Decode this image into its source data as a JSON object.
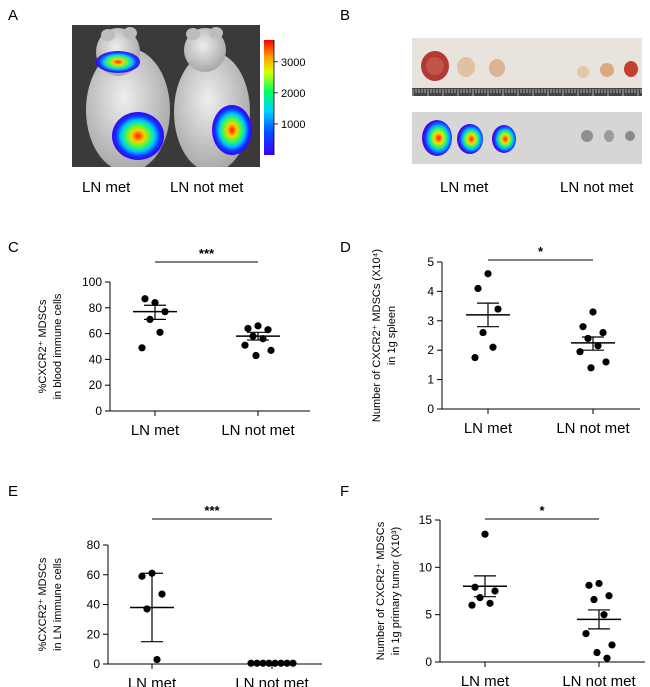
{
  "panel_letters": [
    "A",
    "B",
    "C",
    "D",
    "E",
    "F"
  ],
  "panel_a": {
    "labels": [
      "LN met",
      "LN not met"
    ],
    "colorbar_ticks": [
      "3000",
      "2000",
      "1000"
    ],
    "colorbar_values": [
      3000,
      2000,
      1000
    ],
    "colorbar_range": [
      0,
      3700
    ],
    "colors": {
      "background": "#3a3a3a",
      "mouse": "#cfcfcf"
    }
  },
  "panel_b": {
    "labels": [
      "LN met",
      "LN not met"
    ],
    "colors": {
      "tray": "#e9e3dd",
      "node_red": "#b33a32",
      "node_tan": "#e0c2a2"
    }
  },
  "chart_data": [
    {
      "id": "C",
      "type": "scatter",
      "ylabel_lines": [
        "%CXCR2⁺ MDSCs",
        "in blood immune cells"
      ],
      "categories": [
        "LN met",
        "LN not met"
      ],
      "ylim": [
        0,
        100
      ],
      "yticks": [
        0,
        20,
        40,
        60,
        80,
        100
      ],
      "series": [
        {
          "name": "LN met",
          "values": [
            84,
            87,
            77,
            71,
            61,
            49
          ],
          "center": 77,
          "error_bars": [
            71,
            82
          ]
        },
        {
          "name": "LN not met",
          "values": [
            66,
            64,
            63,
            58,
            56,
            51,
            47,
            43
          ],
          "center": 58,
          "error_bars": [
            55,
            61
          ]
        }
      ],
      "significance": "***"
    },
    {
      "id": "D",
      "type": "scatter",
      "ylabel_lines": [
        "Number of CXCR2⁺ MDSCs (X10⁴)",
        "in 1g spleen"
      ],
      "categories": [
        "LN met",
        "LN not met"
      ],
      "ylim": [
        0,
        5
      ],
      "yticks": [
        0,
        1,
        2,
        3,
        4,
        5
      ],
      "series": [
        {
          "name": "LN met",
          "values": [
            4.6,
            4.1,
            3.4,
            2.6,
            2.1,
            1.75
          ],
          "center": 3.2,
          "error_bars": [
            2.8,
            3.6
          ]
        },
        {
          "name": "LN not met",
          "values": [
            3.3,
            2.8,
            2.6,
            2.4,
            2.15,
            1.95,
            1.6,
            1.4
          ],
          "center": 2.25,
          "error_bars": [
            2.0,
            2.45
          ]
        }
      ],
      "significance": "*"
    },
    {
      "id": "E",
      "type": "scatter",
      "ylabel_lines": [
        "%CXCR2⁺ MDSCs",
        "in LN immune cells"
      ],
      "categories": [
        "LN met",
        "LN not met"
      ],
      "ylim": [
        0,
        80
      ],
      "yticks": [
        0,
        20,
        40,
        60,
        80
      ],
      "series": [
        {
          "name": "LN met",
          "values": [
            61,
            59,
            47,
            37,
            3
          ],
          "center": 38,
          "error_bars": [
            15,
            61
          ]
        },
        {
          "name": "LN not met",
          "values": [
            0.5,
            0.5,
            0.5,
            0.5,
            0.5,
            0.5,
            0.5,
            0.5
          ],
          "center": 0.5,
          "error_bars": [
            0.3,
            0.8
          ]
        }
      ],
      "significance": "***"
    },
    {
      "id": "F",
      "type": "scatter",
      "ylabel_lines": [
        "Number of CXCR2⁺ MDSCs",
        "in 1g primary tumor (X10³)"
      ],
      "categories": [
        "LN met",
        "LN not met"
      ],
      "ylim": [
        0,
        15
      ],
      "yticks": [
        0,
        5,
        10,
        15
      ],
      "series": [
        {
          "name": "LN met",
          "values": [
            13.5,
            7.9,
            7.5,
            6.8,
            6.2,
            6.0
          ],
          "center": 8.0,
          "error_bars": [
            6.9,
            9.1
          ]
        },
        {
          "name": "LN not met",
          "values": [
            8.3,
            8.1,
            7.0,
            6.6,
            5.0,
            3.0,
            1.8,
            1.0,
            0.4
          ],
          "center": 4.5,
          "error_bars": [
            3.5,
            5.5
          ]
        }
      ],
      "significance": "*"
    }
  ]
}
